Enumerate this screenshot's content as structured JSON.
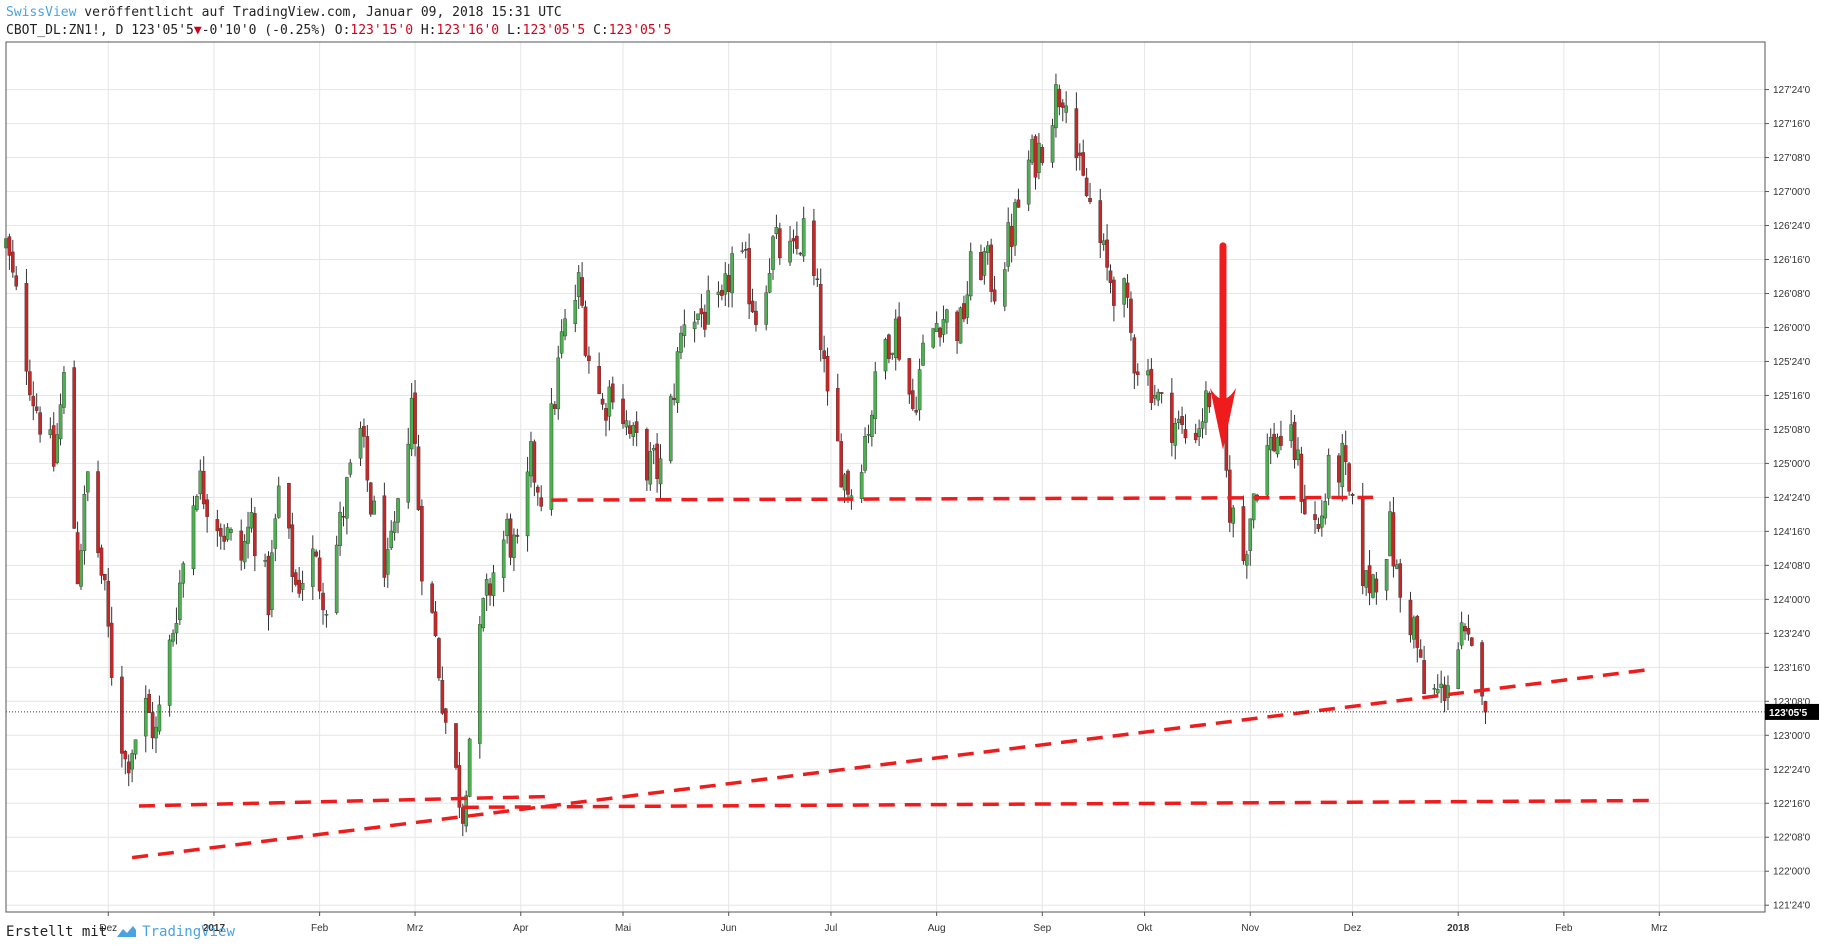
{
  "header": {
    "publisher": "SwissView",
    "published_text": "veröffentlicht auf TradingView.com, Januar 09, 2018 15:31 UTC",
    "symbol": "CBOT_DL:ZN1!, D",
    "last": "123'05'5",
    "change_arrow": "▼",
    "change": "-0'10'0 (-0.25%)",
    "o_label": "O:",
    "o_value": "123'15'0",
    "h_label": "H:",
    "h_value": "123'16'0",
    "l_label": "L:",
    "l_value": "123'05'5",
    "c_label": "C:",
    "c_value": "123'05'5"
  },
  "footer": {
    "created_with": "Erstellt mit",
    "logo_text": "TradingView"
  },
  "colors": {
    "up": "#4caf50",
    "down": "#c62828",
    "wick": "#333333",
    "trend": "#ee1c1c",
    "grid": "#e6e6e6",
    "accent": "#4aa3df"
  },
  "chart_data": {
    "type": "candlestick",
    "price_unit": "32nds (price = handle + 32nds/32 + half-32nd)",
    "ylim": [
      121.7,
      128.1
    ],
    "y_ticks": [
      {
        "v": 127.75,
        "label": "127'24'0"
      },
      {
        "v": 127.5,
        "label": "127'16'0"
      },
      {
        "v": 127.25,
        "label": "127'08'0"
      },
      {
        "v": 127.0,
        "label": "127'00'0"
      },
      {
        "v": 126.75,
        "label": "126'24'0"
      },
      {
        "v": 126.5,
        "label": "126'16'0"
      },
      {
        "v": 126.25,
        "label": "126'08'0"
      },
      {
        "v": 126.0,
        "label": "126'00'0"
      },
      {
        "v": 125.75,
        "label": "125'24'0"
      },
      {
        "v": 125.5,
        "label": "125'16'0"
      },
      {
        "v": 125.25,
        "label": "125'08'0"
      },
      {
        "v": 125.0,
        "label": "125'00'0"
      },
      {
        "v": 124.75,
        "label": "124'24'0"
      },
      {
        "v": 124.5,
        "label": "124'16'0"
      },
      {
        "v": 124.25,
        "label": "124'08'0"
      },
      {
        "v": 124.0,
        "label": "124'00'0"
      },
      {
        "v": 123.75,
        "label": "123'24'0"
      },
      {
        "v": 123.5,
        "label": "123'16'0"
      },
      {
        "v": 123.25,
        "label": "123'08'0"
      },
      {
        "v": 123.0,
        "label": "123'00'0"
      },
      {
        "v": 122.75,
        "label": "122'24'0"
      },
      {
        "v": 122.5,
        "label": "122'16'0"
      },
      {
        "v": 122.25,
        "label": "122'08'0"
      },
      {
        "v": 122.0,
        "label": "122'00'0"
      },
      {
        "v": 121.75,
        "label": "121'24'0"
      }
    ],
    "last_price": {
      "v": 123.171875,
      "label": "123'05'5"
    },
    "x_range": [
      "2016-11-01",
      "2018-04-01"
    ],
    "x_ticks": [
      {
        "date": "2016-12-01",
        "label": "Dez",
        "bold": false
      },
      {
        "date": "2017-01-01",
        "label": "2017",
        "bold": true
      },
      {
        "date": "2017-02-01",
        "label": "Feb",
        "bold": false
      },
      {
        "date": "2017-03-01",
        "label": "Mrz",
        "bold": false
      },
      {
        "date": "2017-04-01",
        "label": "Apr",
        "bold": false
      },
      {
        "date": "2017-05-01",
        "label": "Mai",
        "bold": false
      },
      {
        "date": "2017-06-01",
        "label": "Jun",
        "bold": false
      },
      {
        "date": "2017-07-01",
        "label": "Jul",
        "bold": false
      },
      {
        "date": "2017-08-01",
        "label": "Aug",
        "bold": false
      },
      {
        "date": "2017-09-01",
        "label": "Sep",
        "bold": false
      },
      {
        "date": "2017-10-01",
        "label": "Okt",
        "bold": false
      },
      {
        "date": "2017-11-01",
        "label": "Nov",
        "bold": false
      },
      {
        "date": "2017-12-01",
        "label": "Dez",
        "bold": false
      },
      {
        "date": "2018-01-01",
        "label": "2018",
        "bold": true
      },
      {
        "date": "2018-02-01",
        "label": "Feb",
        "bold": false
      },
      {
        "date": "2018-03-01",
        "label": "Mrz",
        "bold": false
      }
    ],
    "close_path": [
      [
        "2016-11-01",
        126.6
      ],
      [
        "2016-11-04",
        126.2
      ],
      [
        "2016-11-09",
        125.5
      ],
      [
        "2016-11-15",
        125.0
      ],
      [
        "2016-11-18",
        125.6
      ],
      [
        "2016-11-22",
        124.2
      ],
      [
        "2016-11-25",
        124.9
      ],
      [
        "2016-11-30",
        124.0
      ],
      [
        "2016-12-02",
        123.5
      ],
      [
        "2016-12-06",
        122.8
      ],
      [
        "2016-12-12",
        123.2
      ],
      [
        "2016-12-15",
        123.0
      ],
      [
        "2016-12-20",
        123.8
      ],
      [
        "2016-12-27",
        124.9
      ],
      [
        "2017-01-04",
        124.5
      ],
      [
        "2017-01-09",
        124.3
      ],
      [
        "2017-01-12",
        124.6
      ],
      [
        "2017-01-17",
        124.0
      ],
      [
        "2017-01-20",
        124.8
      ],
      [
        "2017-01-25",
        124.1
      ],
      [
        "2017-01-30",
        124.3
      ],
      [
        "2017-02-03",
        124.0
      ],
      [
        "2017-02-09",
        124.8
      ],
      [
        "2017-02-13",
        125.2
      ],
      [
        "2017-02-16",
        124.7
      ],
      [
        "2017-02-21",
        124.2
      ],
      [
        "2017-02-24",
        124.6
      ],
      [
        "2017-02-28",
        125.5
      ],
      [
        "2017-03-03",
        124.3
      ],
      [
        "2017-03-07",
        123.7
      ],
      [
        "2017-03-10",
        123.1
      ],
      [
        "2017-03-13",
        122.7
      ],
      [
        "2017-03-15",
        122.45
      ],
      [
        "2017-03-17",
        123.0
      ],
      [
        "2017-03-21",
        123.9
      ],
      [
        "2017-03-24",
        124.2
      ],
      [
        "2017-03-28",
        124.5
      ],
      [
        "2017-03-31",
        124.3
      ],
      [
        "2017-04-04",
        125.0
      ],
      [
        "2017-04-07",
        124.8
      ],
      [
        "2017-04-10",
        125.3
      ],
      [
        "2017-04-13",
        125.9
      ],
      [
        "2017-04-18",
        126.3
      ],
      [
        "2017-04-21",
        125.8
      ],
      [
        "2017-04-25",
        125.4
      ],
      [
        "2017-04-28",
        125.6
      ],
      [
        "2017-05-03",
        125.2
      ],
      [
        "2017-05-08",
        125.0
      ],
      [
        "2017-05-12",
        124.95
      ],
      [
        "2017-05-15",
        125.4
      ],
      [
        "2017-05-19",
        126.1
      ],
      [
        "2017-05-24",
        126.1
      ],
      [
        "2017-05-30",
        126.1
      ],
      [
        "2017-06-02",
        126.5
      ],
      [
        "2017-06-06",
        126.4
      ],
      [
        "2017-06-09",
        126.1
      ],
      [
        "2017-06-14",
        126.6
      ],
      [
        "2017-06-20",
        126.5
      ],
      [
        "2017-06-23",
        126.7
      ],
      [
        "2017-06-27",
        126.2
      ],
      [
        "2017-06-30",
        125.4
      ],
      [
        "2017-07-05",
        124.9
      ],
      [
        "2017-07-07",
        124.8
      ],
      [
        "2017-07-12",
        125.3
      ],
      [
        "2017-07-17",
        125.9
      ],
      [
        "2017-07-20",
        126.0
      ],
      [
        "2017-07-25",
        125.4
      ],
      [
        "2017-07-28",
        125.8
      ],
      [
        "2017-08-02",
        126.1
      ],
      [
        "2017-08-08",
        126.0
      ],
      [
        "2017-08-11",
        126.4
      ],
      [
        "2017-08-15",
        126.5
      ],
      [
        "2017-08-18",
        126.3
      ],
      [
        "2017-08-23",
        126.7
      ],
      [
        "2017-08-28",
        127.2
      ],
      [
        "2017-08-31",
        127.3
      ],
      [
        "2017-09-05",
        127.7
      ],
      [
        "2017-09-08",
        127.8
      ],
      [
        "2017-09-12",
        127.1
      ],
      [
        "2017-09-15",
        126.9
      ],
      [
        "2017-09-20",
        126.4
      ],
      [
        "2017-09-25",
        126.2
      ],
      [
        "2017-09-28",
        125.8
      ],
      [
        "2017-10-03",
        125.6
      ],
      [
        "2017-10-06",
        125.4
      ],
      [
        "2017-10-10",
        125.3
      ],
      [
        "2017-10-13",
        125.2
      ],
      [
        "2017-10-17",
        125.3
      ],
      [
        "2017-10-20",
        125.5
      ],
      [
        "2017-10-24",
        125.1
      ],
      [
        "2017-10-26",
        124.7
      ],
      [
        "2017-10-30",
        124.3
      ],
      [
        "2017-11-02",
        124.8
      ],
      [
        "2017-11-06",
        125.1
      ],
      [
        "2017-11-09",
        125.2
      ],
      [
        "2017-11-14",
        125.1
      ],
      [
        "2017-11-17",
        124.7
      ],
      [
        "2017-11-21",
        124.5
      ],
      [
        "2017-11-24",
        124.9
      ],
      [
        "2017-11-28",
        125.0
      ],
      [
        "2017-12-01",
        124.6
      ],
      [
        "2017-12-05",
        124.1
      ],
      [
        "2017-12-08",
        124.2
      ],
      [
        "2017-12-12",
        124.5
      ],
      [
        "2017-12-15",
        124.0
      ],
      [
        "2017-12-19",
        123.8
      ],
      [
        "2017-12-22",
        123.3
      ],
      [
        "2017-12-27",
        123.3
      ],
      [
        "2018-01-02",
        123.7
      ],
      [
        "2018-01-04",
        123.6
      ],
      [
        "2018-01-08",
        123.45
      ],
      [
        "2018-01-09",
        123.17
      ]
    ],
    "annotations": {
      "trend_lines": [
        {
          "from": [
            "2016-12-10",
            122.48
          ],
          "to": [
            "2017-04-10",
            122.55
          ],
          "style": "dashed"
        },
        {
          "from": [
            "2017-04-10",
            124.73
          ],
          "to": [
            "2017-12-07",
            124.75
          ],
          "style": "dashed"
        },
        {
          "from": [
            "2016-12-08",
            122.1
          ],
          "to": [
            "2018-02-25",
            123.48
          ],
          "style": "dashed"
        },
        {
          "from": [
            "2017-03-15",
            122.47
          ],
          "to": [
            "2018-02-27",
            122.52
          ],
          "style": "dashed"
        }
      ],
      "arrow": {
        "at": "2017-10-24",
        "from": 126.6,
        "to": 125.1
      }
    }
  }
}
